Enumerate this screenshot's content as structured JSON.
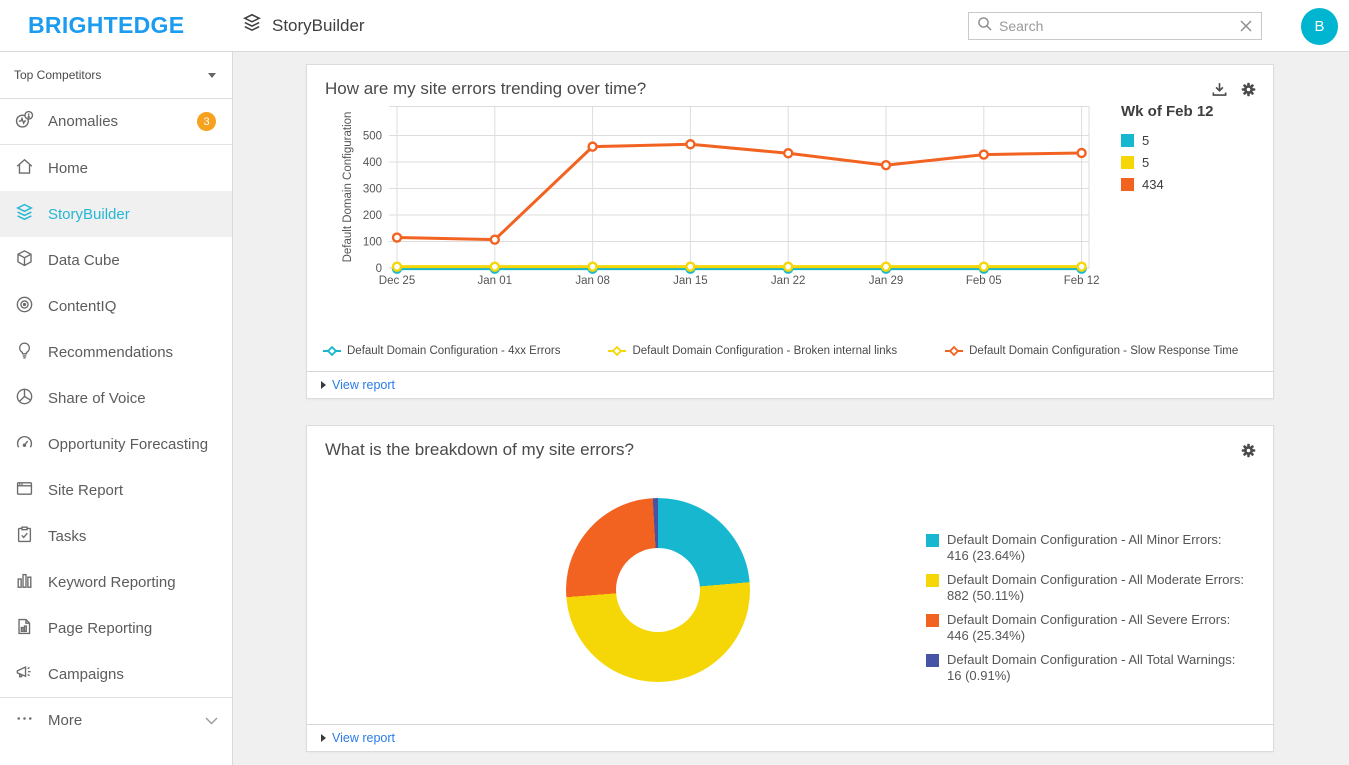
{
  "header": {
    "logo": "BRIGHTEDGE",
    "app_title": "StoryBuilder",
    "app_icon": "layers-icon",
    "search": {
      "placeholder": "Search",
      "icons": [
        "search-icon",
        "clear-icon"
      ]
    },
    "avatar": "B"
  },
  "sidebar": {
    "filter": {
      "label": "Top Competitors",
      "icon": "caret-down-icon"
    },
    "items": [
      {
        "label": "Anomalies",
        "icon": "anomalies-icon",
        "badge": "3"
      },
      {
        "label": "Home",
        "icon": "home-icon"
      },
      {
        "label": "StoryBuilder",
        "icon": "layers-icon",
        "active": true
      },
      {
        "label": "Data Cube",
        "icon": "cube-icon"
      },
      {
        "label": "ContentIQ",
        "icon": "target-icon"
      },
      {
        "label": "Recommendations",
        "icon": "lightbulb-icon"
      },
      {
        "label": "Share of Voice",
        "icon": "pie-icon"
      },
      {
        "label": "Opportunity Forecasting",
        "icon": "gauge-icon"
      },
      {
        "label": "Site Report",
        "icon": "browser-icon"
      },
      {
        "label": "Tasks",
        "icon": "clipboard-check-icon"
      },
      {
        "label": "Keyword Reporting",
        "icon": "bar-chart-icon"
      },
      {
        "label": "Page Reporting",
        "icon": "page-chart-icon"
      },
      {
        "label": "Campaigns",
        "icon": "megaphone-icon"
      },
      {
        "label": "More",
        "icon": "ellipsis-icon",
        "chevron": "chevron-down-icon"
      }
    ]
  },
  "cards": [
    {
      "title": "How are my site errors trending over time?",
      "actions": [
        "download-icon",
        "gear-icon"
      ],
      "view_report": "View report"
    },
    {
      "title": "What is the breakdown of my site errors?",
      "actions": [
        "gear-icon"
      ],
      "view_report": "View report"
    }
  ],
  "chart_data": [
    {
      "type": "line",
      "title": "How are my site errors trending over time?",
      "x": [
        "Dec 25",
        "Jan 01",
        "Jan 08",
        "Jan 15",
        "Jan 22",
        "Jan 29",
        "Feb 05",
        "Feb 12"
      ],
      "ylabel": "Default Domain Configuration",
      "yticks": [
        0,
        100,
        200,
        300,
        400,
        500
      ],
      "ylim": [
        0,
        610
      ],
      "grid": true,
      "series": [
        {
          "name": "Default Domain Configuration - 4xx Errors",
          "color": "#17b8cf",
          "values": [
            5,
            5,
            5,
            5,
            5,
            5,
            5,
            5
          ]
        },
        {
          "name": "Default Domain Configuration - Broken internal links",
          "color": "#f5d708",
          "values": [
            5,
            5,
            5,
            5,
            5,
            5,
            5,
            5
          ]
        },
        {
          "name": "Default Domain Configuration - Slow Response Time",
          "color": "#f26322",
          "values": [
            115,
            107,
            458,
            467,
            433,
            388,
            428,
            434
          ]
        }
      ],
      "current_legend": {
        "title": "Wk of Feb 12",
        "items": [
          {
            "value": "5",
            "color": "#17b8cf"
          },
          {
            "value": "5",
            "color": "#f5d708"
          },
          {
            "value": "434",
            "color": "#f26322"
          }
        ]
      }
    },
    {
      "type": "pie",
      "donut": true,
      "title": "What is the breakdown of my site errors?",
      "legend_position": "right",
      "slices": [
        {
          "label": "Default Domain Configuration - All Minor Errors:",
          "display": "416 (23.64%)",
          "value": 416,
          "pct": 23.64,
          "color": "#17b8cf"
        },
        {
          "label": "Default Domain Configuration - All Moderate Errors:",
          "display": "882 (50.11%)",
          "value": 882,
          "pct": 50.11,
          "color": "#f5d708"
        },
        {
          "label": "Default Domain Configuration - All Severe Errors:",
          "display": "446 (25.34%)",
          "value": 446,
          "pct": 25.34,
          "color": "#f26322"
        },
        {
          "label": "Default Domain Configuration - All Total Warnings:",
          "display": "16 (0.91%)",
          "value": 16,
          "pct": 0.91,
          "color": "#4753a5"
        }
      ]
    }
  ],
  "colors": {
    "brand_blue": "#1b9cf0",
    "accent_cyan": "#25b7d3",
    "badge_orange": "#f6a21e",
    "link_blue": "#2b7be9"
  }
}
